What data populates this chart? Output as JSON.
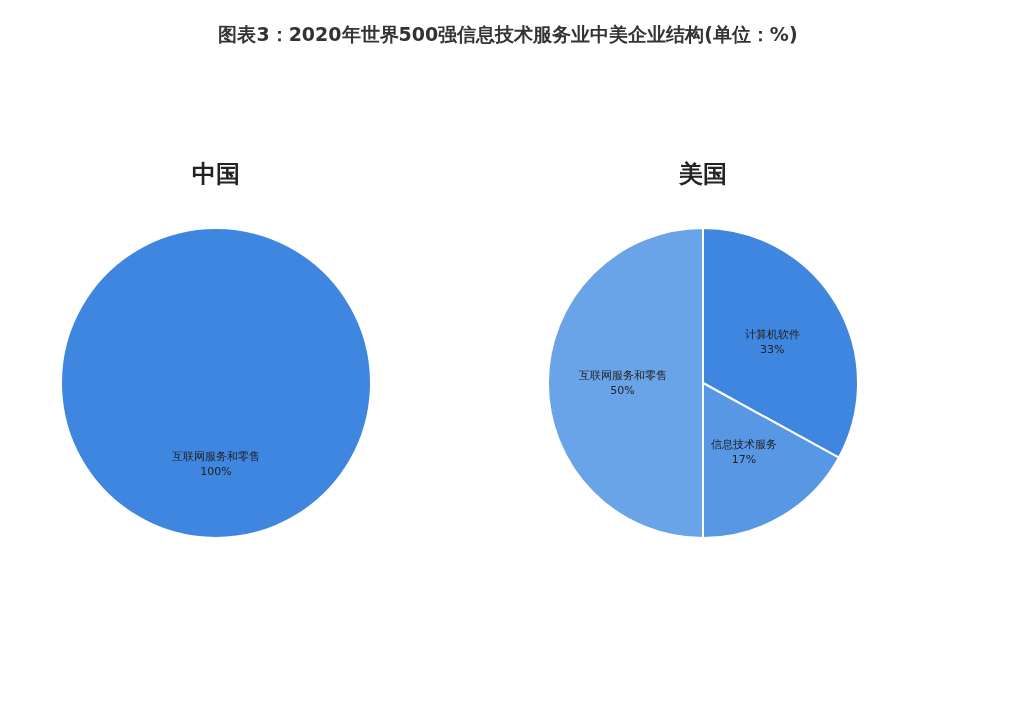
{
  "chart_data": [
    {
      "type": "pie",
      "title": "图表3：2020年世界500强信息技术服务业中美企业结构(单位：%)",
      "subtitle": "中国",
      "categories": [
        "互联网服务和零售"
      ],
      "values": [
        100
      ],
      "value_labels": [
        "100%"
      ],
      "colors": [
        "#3f86e0"
      ],
      "legend": false
    },
    {
      "type": "pie",
      "subtitle": "美国",
      "categories": [
        "计算机软件",
        "信息技术服务",
        "互联网服务和零售"
      ],
      "values": [
        33,
        17,
        50
      ],
      "value_labels": [
        "33%",
        "17%",
        "50%"
      ],
      "colors": [
        "#3f86e0",
        "#5797e4",
        "#69a3e8"
      ],
      "legend": false
    }
  ]
}
